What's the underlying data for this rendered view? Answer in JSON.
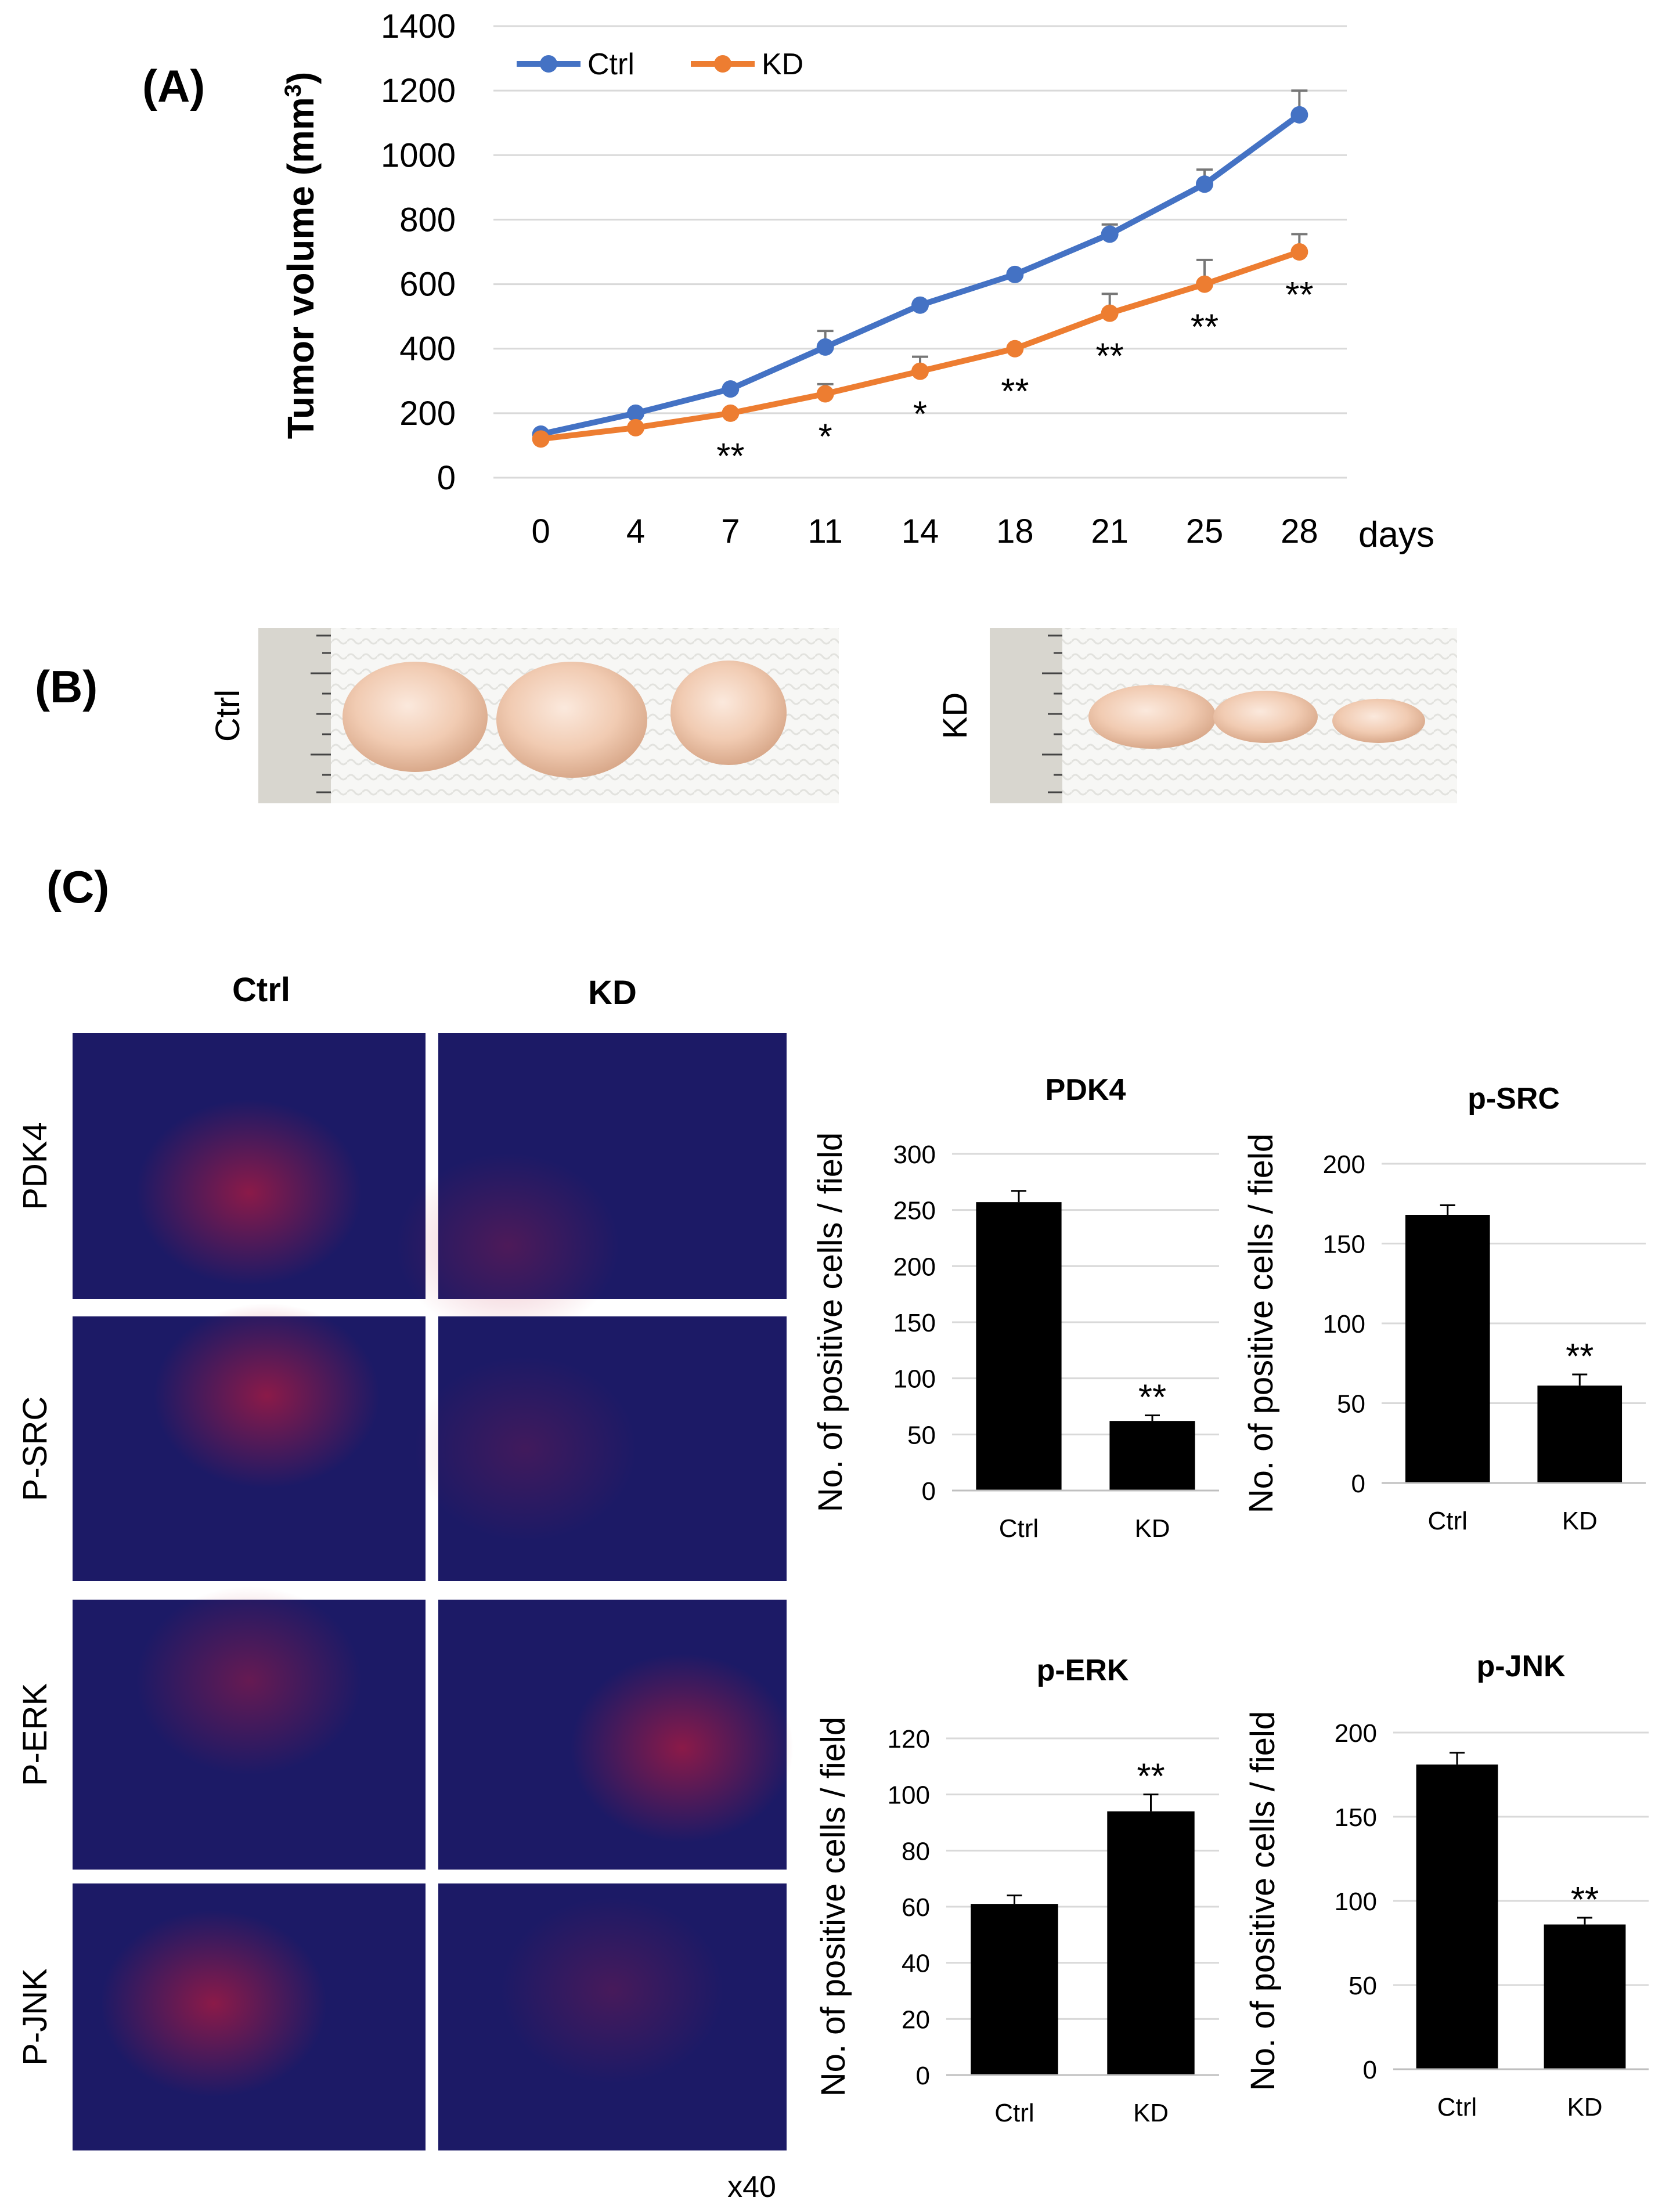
{
  "panels": {
    "a": "(A)",
    "b": "(B)",
    "c": "(C)"
  },
  "photo_labels": {
    "ctrl": "Ctrl",
    "kd": "KD"
  },
  "magnification": "x40",
  "if_images": {
    "columns": [
      "Ctrl",
      "KD"
    ],
    "rows": [
      "PDK4",
      "P-SRC",
      "P-ERK",
      "P-JNK"
    ]
  },
  "colors": {
    "ctrl_line": "#4472C4",
    "kd_line": "#ED7D31",
    "bar": "#000000",
    "grid": "#D9D9D9"
  },
  "chart_data": [
    {
      "id": "growth",
      "type": "line",
      "title": "",
      "xlabel": "days",
      "ylabel": "Tumor volume (mm3)",
      "ylabel_main": "Tumor volume (mm",
      "ylabel_sup": "3",
      "ylabel_end": ")",
      "categories": [
        "0",
        "4",
        "7",
        "11",
        "14",
        "18",
        "21",
        "25",
        "28"
      ],
      "ylim": [
        0,
        1400
      ],
      "yticks": [
        0,
        200,
        400,
        600,
        800,
        1000,
        1200,
        1400
      ],
      "legend_position": "top-left",
      "series": [
        {
          "name": "Ctrl",
          "color": "#4472C4",
          "values": [
            135,
            200,
            275,
            405,
            535,
            630,
            755,
            910,
            1125
          ],
          "errors": [
            0,
            0,
            0,
            50,
            0,
            0,
            30,
            45,
            75
          ]
        },
        {
          "name": "KD",
          "color": "#ED7D31",
          "values": [
            120,
            155,
            200,
            260,
            330,
            400,
            510,
            600,
            700
          ],
          "errors": [
            0,
            0,
            0,
            30,
            45,
            0,
            60,
            75,
            55
          ]
        }
      ],
      "significance": [
        "",
        "",
        "**",
        "*",
        "*",
        "**",
        "**",
        "**",
        "**"
      ]
    },
    {
      "id": "pdk4",
      "type": "bar",
      "title": "PDK4",
      "ylabel": "No. of positive cells / field",
      "categories": [
        "Ctrl",
        "KD"
      ],
      "values": [
        257,
        62
      ],
      "errors": [
        10,
        5
      ],
      "ylim": [
        0,
        300
      ],
      "yticks": [
        0,
        50,
        100,
        150,
        200,
        250,
        300
      ],
      "significance": [
        "",
        "**"
      ]
    },
    {
      "id": "psrc",
      "type": "bar",
      "title": "p-SRC",
      "ylabel": "No. of positive cells / field",
      "categories": [
        "Ctrl",
        "KD"
      ],
      "values": [
        168,
        61
      ],
      "errors": [
        6,
        7
      ],
      "ylim": [
        0,
        200
      ],
      "yticks": [
        0,
        50,
        100,
        150,
        200
      ],
      "significance": [
        "",
        "**"
      ]
    },
    {
      "id": "perk",
      "type": "bar",
      "title": "p-ERK",
      "ylabel": "No. of positive cells / field",
      "categories": [
        "Ctrl",
        "KD"
      ],
      "values": [
        61,
        94
      ],
      "errors": [
        3,
        6
      ],
      "ylim": [
        0,
        120
      ],
      "yticks": [
        0,
        20,
        40,
        60,
        80,
        100,
        120
      ],
      "significance": [
        "",
        "**"
      ]
    },
    {
      "id": "pjnk",
      "type": "bar",
      "title": "p-JNK",
      "ylabel": "No. of positive cells / field",
      "categories": [
        "Ctrl",
        "KD"
      ],
      "values": [
        181,
        86
      ],
      "errors": [
        7,
        4
      ],
      "ylim": [
        0,
        200
      ],
      "yticks": [
        0,
        50,
        100,
        150,
        200
      ],
      "significance": [
        "",
        "**"
      ]
    }
  ]
}
